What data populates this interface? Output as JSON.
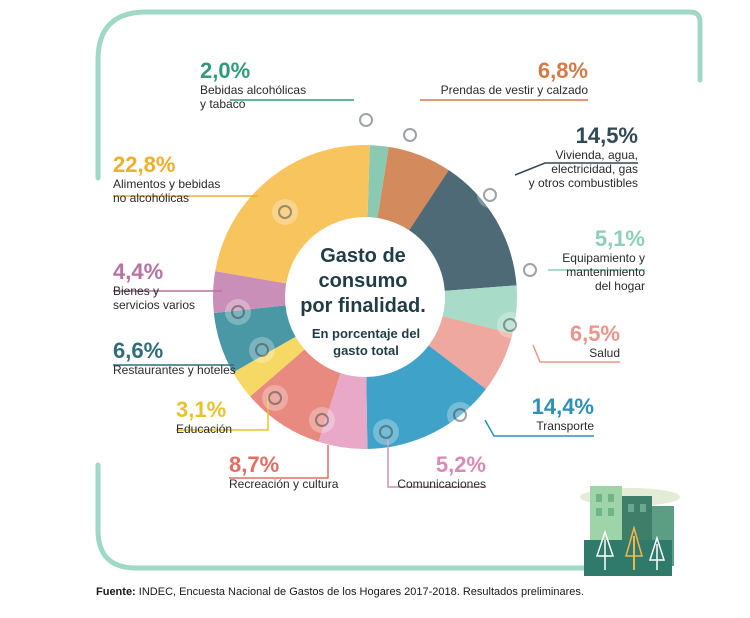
{
  "chart_data": {
    "type": "pie",
    "center_title": [
      "Gasto de",
      "consumo",
      "por finalidad."
    ],
    "center_subtitle": [
      "En porcentaje del",
      "gasto total"
    ],
    "slices": [
      {
        "label_lines": [
          "Bebidas alcohólicas",
          "y tabaco"
        ],
        "value": 2.0,
        "display": "2,0%",
        "color": "#8cc9b3",
        "icon": "bottle-icon"
      },
      {
        "label_lines": [
          "Prendas de vestir y calzado"
        ],
        "value": 6.8,
        "display": "6,8%",
        "color": "#d38a5d",
        "icon": "tshirt-icon"
      },
      {
        "label_lines": [
          "Vivienda, agua,",
          "electricidad, gas",
          "y otros combustibles"
        ],
        "value": 14.5,
        "display": "14,5%",
        "color": "#4f6a77",
        "icon": "lightbulb-icon"
      },
      {
        "label_lines": [
          "Equipamiento y",
          "mantenimiento",
          "del hogar"
        ],
        "value": 5.1,
        "display": "5,1%",
        "color": "#a8dcc8",
        "icon": "washing-machine-icon"
      },
      {
        "label_lines": [
          "Salud"
        ],
        "value": 6.5,
        "display": "6,5%",
        "color": "#eea89f",
        "icon": "health-cross-icon"
      },
      {
        "label_lines": [
          "Transporte"
        ],
        "value": 14.4,
        "display": "14,4%",
        "color": "#3fa3c9",
        "icon": "car-icon"
      },
      {
        "label_lines": [
          "Comunicaciones"
        ],
        "value": 5.2,
        "display": "5,2%",
        "color": "#e9a8c8",
        "icon": "phone-icon"
      },
      {
        "label_lines": [
          "Recreación y cultura"
        ],
        "value": 8.7,
        "display": "8,7%",
        "color": "#e98a80",
        "icon": "guitar-icon"
      },
      {
        "label_lines": [
          "Educación"
        ],
        "value": 3.1,
        "display": "3,1%",
        "color": "#f6d965",
        "icon": "briefcase-icon"
      },
      {
        "label_lines": [
          "Restaurantes y hoteles"
        ],
        "value": 6.6,
        "display": "6,6%",
        "color": "#4a98a6",
        "icon": "suitcase-icon"
      },
      {
        "label_lines": [
          "Bienes y",
          "servicios varios"
        ],
        "value": 4.4,
        "display": "4,4%",
        "color": "#c98fb8",
        "icon": "scissors-icon"
      },
      {
        "label_lines": [
          "Alimentos y bebidas",
          "no alcohólicas"
        ],
        "value": 22.8,
        "display": "22,8%",
        "color": "#f7c45e",
        "icon": "chicken-icon"
      }
    ],
    "label_colors": {
      "2,0%": "#2e9c79",
      "6,8%": "#d37a45",
      "14,5%": "#2f4a55",
      "5,1%": "#8ccfb9",
      "6,5%": "#e9968b",
      "14,4%": "#2e8fb8",
      "5,2%": "#d98bb5",
      "8,7%": "#e06e62",
      "3,1%": "#e8c32f",
      "6,6%": "#2f6e79",
      "4,4%": "#b970a4",
      "22,8%": "#f0ae2b"
    }
  },
  "source": {
    "label": "Fuente:",
    "text": " INDEC, Encuesta Nacional de Gastos de los Hogares 2017-2018. Resultados preliminares."
  },
  "colors": {
    "frame": "#9fd8c6",
    "center_text": "#1f3d45"
  }
}
